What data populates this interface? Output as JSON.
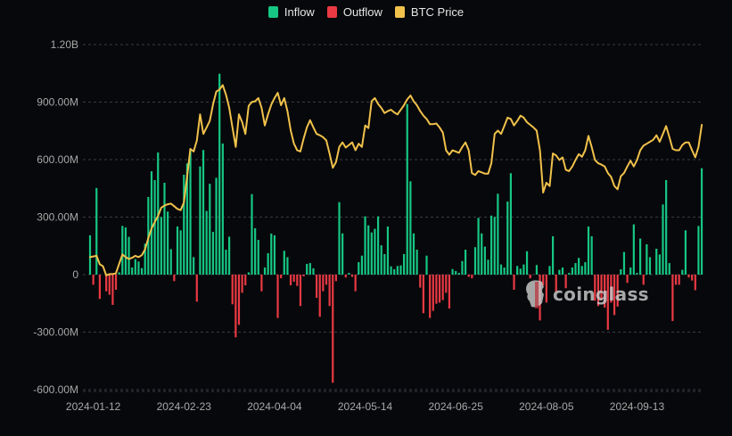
{
  "chart_data": {
    "type": "bar",
    "title": "",
    "legend": {
      "placement": "top-center"
    },
    "series": [
      {
        "name": "Inflow",
        "color": "#16c784"
      },
      {
        "name": "Outflow",
        "color": "#ea3943"
      },
      {
        "name": "BTC Price",
        "color": "#f0c14b",
        "type": "line"
      }
    ],
    "y_ticks": [
      "1.20B",
      "900.00M",
      "600.00M",
      "300.00M",
      "0",
      "-300.00M",
      "-600.00M"
    ],
    "ylim_millions": [
      -600,
      1200
    ],
    "grid": true,
    "x_ticks": [
      "2024-01-12",
      "2024-02-23",
      "2024-04-04",
      "2024-05-14",
      "2024-06-25",
      "2024-08-05",
      "2024-09-13"
    ],
    "dates": [
      "2024-01-11",
      "2024-01-12",
      "2024-01-16",
      "2024-01-17",
      "2024-01-18",
      "2024-01-19",
      "2024-01-22",
      "2024-01-23",
      "2024-01-24",
      "2024-01-25",
      "2024-01-26",
      "2024-01-29",
      "2024-01-30",
      "2024-01-31",
      "2024-02-01",
      "2024-02-02",
      "2024-02-05",
      "2024-02-06",
      "2024-02-07",
      "2024-02-08",
      "2024-02-09",
      "2024-02-12",
      "2024-02-13",
      "2024-02-14",
      "2024-02-15",
      "2024-02-16",
      "2024-02-20",
      "2024-02-21",
      "2024-02-22",
      "2024-02-23",
      "2024-02-26",
      "2024-02-27",
      "2024-02-28",
      "2024-02-29",
      "2024-03-01",
      "2024-03-04",
      "2024-03-05",
      "2024-03-06",
      "2024-03-07",
      "2024-03-08",
      "2024-03-11",
      "2024-03-12",
      "2024-03-13",
      "2024-03-14",
      "2024-03-15",
      "2024-03-18",
      "2024-03-19",
      "2024-03-20",
      "2024-03-21",
      "2024-03-22",
      "2024-03-25",
      "2024-03-26",
      "2024-03-27",
      "2024-03-28",
      "2024-04-01",
      "2024-04-02",
      "2024-04-03",
      "2024-04-04",
      "2024-04-05",
      "2024-04-08",
      "2024-04-09",
      "2024-04-10",
      "2024-04-11",
      "2024-04-12",
      "2024-04-15",
      "2024-04-16",
      "2024-04-17",
      "2024-04-18",
      "2024-04-19",
      "2024-04-22",
      "2024-04-23",
      "2024-04-24",
      "2024-04-25",
      "2024-04-26",
      "2024-04-29",
      "2024-04-30",
      "2024-05-01",
      "2024-05-02",
      "2024-05-03",
      "2024-05-06",
      "2024-05-07",
      "2024-05-08",
      "2024-05-09",
      "2024-05-10",
      "2024-05-13",
      "2024-05-14",
      "2024-05-15",
      "2024-05-16",
      "2024-05-17",
      "2024-05-20",
      "2024-05-21",
      "2024-05-22",
      "2024-05-23",
      "2024-05-24",
      "2024-05-28",
      "2024-05-29",
      "2024-05-30",
      "2024-05-31",
      "2024-06-03",
      "2024-06-04",
      "2024-06-05",
      "2024-06-06",
      "2024-06-07",
      "2024-06-10",
      "2024-06-11",
      "2024-06-12",
      "2024-06-13",
      "2024-06-14",
      "2024-06-17",
      "2024-06-18",
      "2024-06-20",
      "2024-06-21",
      "2024-06-24",
      "2024-06-25",
      "2024-06-26",
      "2024-06-27",
      "2024-06-28",
      "2024-07-01",
      "2024-07-02",
      "2024-07-03",
      "2024-07-05",
      "2024-07-08",
      "2024-07-09",
      "2024-07-10",
      "2024-07-11",
      "2024-07-12",
      "2024-07-15",
      "2024-07-16",
      "2024-07-17",
      "2024-07-18",
      "2024-07-19",
      "2024-07-22",
      "2024-07-23",
      "2024-07-24",
      "2024-07-25",
      "2024-07-26",
      "2024-07-29",
      "2024-07-30",
      "2024-07-31",
      "2024-08-01",
      "2024-08-02",
      "2024-08-05",
      "2024-08-06",
      "2024-08-07",
      "2024-08-08",
      "2024-08-09",
      "2024-08-12",
      "2024-08-13",
      "2024-08-14",
      "2024-08-15",
      "2024-08-16",
      "2024-08-19",
      "2024-08-20",
      "2024-08-21",
      "2024-08-22",
      "2024-08-23",
      "2024-08-26",
      "2024-08-27",
      "2024-08-28",
      "2024-08-29",
      "2024-08-30",
      "2024-09-03",
      "2024-09-04",
      "2024-09-05",
      "2024-09-06",
      "2024-09-09",
      "2024-09-10",
      "2024-09-11",
      "2024-09-12",
      "2024-09-13",
      "2024-09-16",
      "2024-09-17",
      "2024-09-18",
      "2024-09-19",
      "2024-09-20",
      "2024-09-23",
      "2024-09-24",
      "2024-09-25",
      "2024-09-26",
      "2024-09-27",
      "2024-09-30",
      "2024-10-01",
      "2024-10-02",
      "2024-10-03",
      "2024-10-04",
      "2024-10-07",
      "2024-10-08",
      "2024-10-09",
      "2024-10-10",
      "2024-10-11"
    ],
    "netflow_millions": [
      205,
      -53,
      452,
      -127,
      0,
      -87,
      -105,
      -158,
      -79,
      12,
      254,
      246,
      197,
      37,
      81,
      68,
      34,
      161,
      405,
      539,
      493,
      637,
      301,
      479,
      329,
      133,
      -34,
      251,
      231,
      521,
      580,
      657,
      91,
      -141,
      564,
      650,
      332,
      474,
      223,
      505,
      1048,
      684,
      130,
      198,
      -155,
      -327,
      -262,
      -95,
      -56,
      12,
      420,
      242,
      181,
      -87,
      37,
      112,
      214,
      205,
      -226,
      -19,
      124,
      91,
      -56,
      -37,
      -59,
      -164,
      -9,
      56,
      60,
      33,
      -121,
      -220,
      -87,
      -53,
      -164,
      -564,
      -34,
      378,
      215,
      -15,
      9,
      -12,
      -87,
      65,
      99,
      304,
      257,
      220,
      239,
      304,
      153,
      107,
      251,
      43,
      28,
      45,
      48,
      107,
      890,
      487,
      215,
      130,
      -68,
      -201,
      99,
      -226,
      -189,
      -152,
      -146,
      -133,
      -95,
      -177,
      29,
      19,
      9,
      71,
      130,
      -12,
      -19,
      143,
      296,
      215,
      146,
      78,
      308,
      301,
      422,
      53,
      37,
      381,
      529,
      -79,
      45,
      31,
      53,
      122,
      -19,
      0,
      50,
      -239,
      -56,
      -146,
      45,
      200,
      -90,
      25,
      37,
      -71,
      9,
      37,
      60,
      87,
      45,
      65,
      251,
      200,
      -136,
      -164,
      -133,
      -172,
      -288,
      -146,
      -211,
      -167,
      28,
      118,
      -43,
      37,
      262,
      9,
      188,
      -53,
      158,
      91,
      0,
      135,
      105,
      366,
      493,
      60,
      -242,
      -53,
      -53,
      25,
      231,
      -15,
      -31,
      -81,
      254,
      555
    ],
    "btc_price_k": [
      46.6,
      46.7,
      46.8,
      45.5,
      45.2,
      43.8,
      44.0,
      44.0,
      44.1,
      45.6,
      47.0,
      46.6,
      46.3,
      46.5,
      46.8,
      46.6,
      46.9,
      47.8,
      49.5,
      51.0,
      52.0,
      52.9,
      54.2,
      54.5,
      54.7,
      54.8,
      54.4,
      54.0,
      53.8,
      55.0,
      59.0,
      63.2,
      62.8,
      64.5,
      68.5,
      65.5,
      66.5,
      67.5,
      70.0,
      72.0,
      72.3,
      73.0,
      71.5,
      69.5,
      66.5,
      63.5,
      68.5,
      67.3,
      65.5,
      69.8,
      70.4,
      70.5,
      71.0,
      69.5,
      66.8,
      68.5,
      70.0,
      71.0,
      71.8,
      69.9,
      71.0,
      69.0,
      66.0,
      64.0,
      63.0,
      62.8,
      64.8,
      66.5,
      67.6,
      66.5,
      65.5,
      65.3,
      65.0,
      64.5,
      62.5,
      60.3,
      61.2,
      63.5,
      64.2,
      63.4,
      63.8,
      64.2,
      63.0,
      64.0,
      63.5,
      66.8,
      66.4,
      70.5,
      71.0,
      70.1,
      69.5,
      68.7,
      69.0,
      69.2,
      68.8,
      68.5,
      69.2,
      69.9,
      70.8,
      71.4,
      70.5,
      69.9,
      69.0,
      68.3,
      67.8,
      67.0,
      67.0,
      67.1,
      66.5,
      65.7,
      63.0,
      62.3,
      63.0,
      62.8,
      62.6,
      63.5,
      64.2,
      63.0,
      59.5,
      59.2,
      59.8,
      59.6,
      59.4,
      59.4,
      61.0,
      65.5,
      66.0,
      65.5,
      66.7,
      68.0,
      67.8,
      66.8,
      67.5,
      68.3,
      68.0,
      67.3,
      66.9,
      66.5,
      66.0,
      63.0,
      56.5,
      58.0,
      57.5,
      62.5,
      62.2,
      61.5,
      61.9,
      60.0,
      59.8,
      60.5,
      61.5,
      62.4,
      62.0,
      63.0,
      65.2,
      63.5,
      61.5,
      61.0,
      60.8,
      60.5,
      59.5,
      58.9,
      57.5,
      57.0,
      59.0,
      59.5,
      60.5,
      61.4,
      60.5,
      61.5,
      63.0,
      63.7,
      64.0,
      64.3,
      64.6,
      65.3,
      64.3,
      65.5,
      66.7,
      65.0,
      63.2,
      63.0,
      63.0,
      63.8,
      64.2,
      64.2,
      63.0,
      61.9,
      63.5,
      66.9
    ]
  },
  "watermark": "coinglass"
}
